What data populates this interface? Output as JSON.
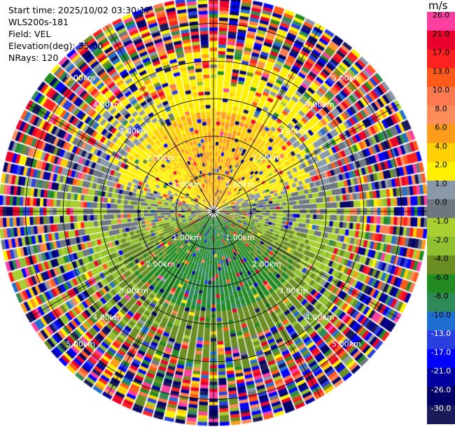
{
  "header": {
    "start_time": "Start time: 2025/10/02 03:30:17",
    "instrument": "WLS200s-181",
    "field": "Field: VEL",
    "elevation": "Elevation(deg): 35.00",
    "nrays": "NRays: 120"
  },
  "colorbar": {
    "unit": "m/s",
    "bins": [
      {
        "label": "26.0",
        "color": "#ff3fa0"
      },
      {
        "label": "21.0",
        "color": "#e8002a"
      },
      {
        "label": "17.0",
        "color": "#ff2020"
      },
      {
        "label": "13.0",
        "color": "#ff5a1a"
      },
      {
        "label": "10.0",
        "color": "#ff7a50"
      },
      {
        "label": "8.0",
        "color": "#ff8c5a"
      },
      {
        "label": "6.0",
        "color": "#ff9c1a"
      },
      {
        "label": "4.0",
        "color": "#ffd000"
      },
      {
        "label": "2.0",
        "color": "#fff000"
      },
      {
        "label": "1.0",
        "color": "#8a99a8"
      },
      {
        "label": "0.0",
        "color": "#6e7680"
      },
      {
        "label": "-1.0",
        "color": "#a8d030"
      },
      {
        "label": "-2.0",
        "color": "#90c030"
      },
      {
        "label": "-4.0",
        "color": "#6b8e23"
      },
      {
        "label": "-6.0",
        "color": "#228b22"
      },
      {
        "label": "-8.0",
        "color": "#2e8b57"
      },
      {
        "label": "-10.0",
        "color": "#1e6fd0"
      },
      {
        "label": "-13.0",
        "color": "#2a3fe0"
      },
      {
        "label": "-17.0",
        "color": "#0000ff"
      },
      {
        "label": "-21.0",
        "color": "#0000a0"
      },
      {
        "label": "-26.0",
        "color": "#000066"
      },
      {
        "label": "-30.0",
        "color": "#1a1a5a"
      }
    ]
  },
  "chart_data": {
    "type": "heatmap",
    "subtype": "polar-ppi",
    "field": "VEL",
    "units": "m/s",
    "elevation_deg": 35.0,
    "n_rays": 120,
    "range_rings_km": [
      1.0,
      2.0,
      3.0,
      4.0,
      5.0
    ],
    "ring_labels": [
      "1.00km",
      "2.00km",
      "3.00km",
      "4.00km",
      "5.00km"
    ],
    "spoke_step_deg": 30,
    "max_range_km": 5.7,
    "description_values": {
      "north_sector_near": 6.0,
      "north_sector_mid": 2.0,
      "south_sector_near": -6.0,
      "south_sector_mid": -4.0,
      "east_west_axis": 0.0
    }
  }
}
